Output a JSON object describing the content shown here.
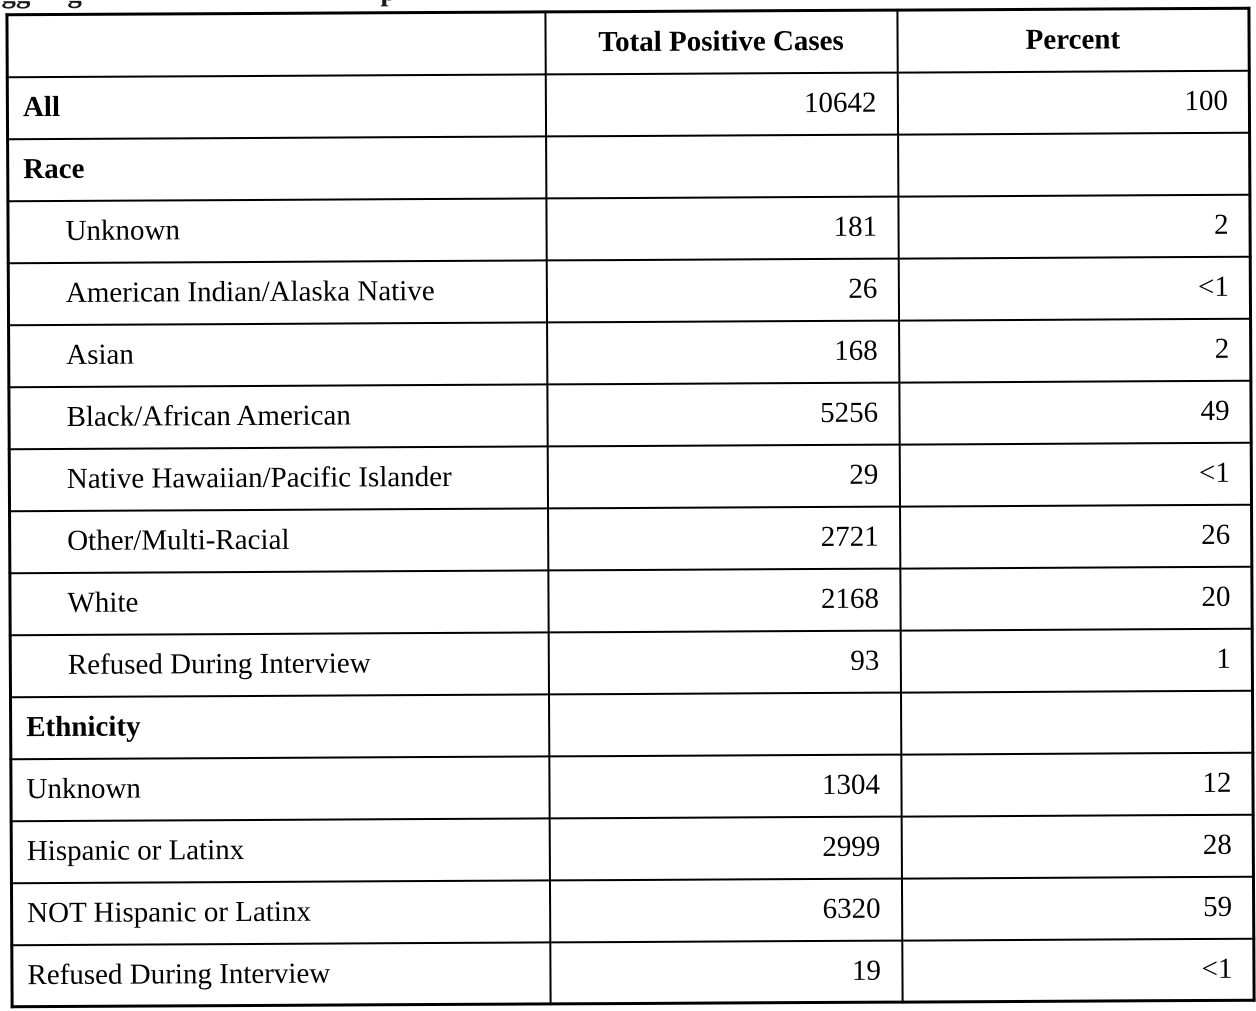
{
  "clipped_caption": {
    "note": "only letter descenders visible at top edge",
    "fragments": [
      {
        "text": "gg"
      },
      {
        "text": "g"
      },
      {
        "text": "p"
      }
    ]
  },
  "table": {
    "columns": [
      "",
      "Total Positive Cases",
      "Percent"
    ],
    "rows": [
      {
        "label": "All",
        "bold": true,
        "indent": false,
        "cases": "10642",
        "percent": "100"
      },
      {
        "label": "Race",
        "bold": true,
        "indent": false,
        "cases": "",
        "percent": ""
      },
      {
        "label": "Unknown",
        "bold": false,
        "indent": true,
        "cases": "181",
        "percent": "2"
      },
      {
        "label": "American Indian/Alaska Native",
        "bold": false,
        "indent": true,
        "cases": "26",
        "percent": "<1"
      },
      {
        "label": "Asian",
        "bold": false,
        "indent": true,
        "cases": "168",
        "percent": "2"
      },
      {
        "label": "Black/African American",
        "bold": false,
        "indent": true,
        "cases": "5256",
        "percent": "49"
      },
      {
        "label": "Native Hawaiian/Pacific Islander",
        "bold": false,
        "indent": true,
        "cases": "29",
        "percent": "<1"
      },
      {
        "label": "Other/Multi-Racial",
        "bold": false,
        "indent": true,
        "cases": "2721",
        "percent": "26"
      },
      {
        "label": "White",
        "bold": false,
        "indent": true,
        "cases": "2168",
        "percent": "20"
      },
      {
        "label": "Refused During Interview",
        "bold": false,
        "indent": true,
        "cases": "93",
        "percent": "1"
      },
      {
        "label": "Ethnicity",
        "bold": true,
        "indent": false,
        "cases": "",
        "percent": ""
      },
      {
        "label": "Unknown",
        "bold": false,
        "indent": false,
        "cases": "1304",
        "percent": "12"
      },
      {
        "label": "Hispanic or Latinx",
        "bold": false,
        "indent": false,
        "cases": "2999",
        "percent": "28"
      },
      {
        "label": "NOT Hispanic or Latinx",
        "bold": false,
        "indent": false,
        "cases": "6320",
        "percent": "59"
      },
      {
        "label": "Refused During Interview",
        "bold": false,
        "indent": false,
        "cases": "19",
        "percent": "<1"
      }
    ]
  },
  "colors": {
    "text": "#000000",
    "border": "#000000",
    "background": "#ffffff"
  }
}
